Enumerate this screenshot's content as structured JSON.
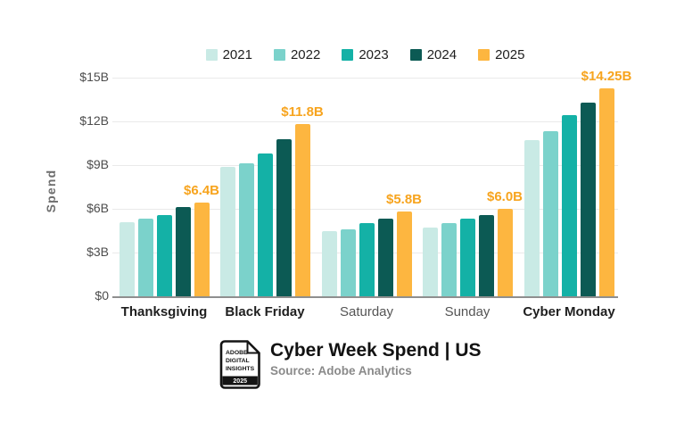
{
  "page": {
    "background": "#ffffff"
  },
  "chart_data": {
    "type": "bar",
    "title": "Cyber Week Spend | US",
    "source": "Source: Adobe Analytics",
    "ylabel": "Spend",
    "ylim": [
      0,
      15
    ],
    "grid": true,
    "legend_position": "top",
    "yticks": [
      {
        "value": 15,
        "label": "$15B"
      },
      {
        "value": 12,
        "label": "$12B"
      },
      {
        "value": 9,
        "label": "$9B"
      },
      {
        "value": 6,
        "label": "$6B"
      },
      {
        "value": 3,
        "label": "$3B"
      },
      {
        "value": 0,
        "label": "$0"
      }
    ],
    "categories": [
      "Thanksgiving",
      "Black Friday",
      "Saturday",
      "Sunday",
      "Cyber Monday"
    ],
    "category_emphasis": [
      true,
      true,
      false,
      false,
      true
    ],
    "series": [
      {
        "name": "2021",
        "color": "#C9EAE5",
        "values": [
          5.1,
          8.9,
          4.5,
          4.7,
          10.7
        ]
      },
      {
        "name": "2022",
        "color": "#7BD2CB",
        "values": [
          5.3,
          9.1,
          4.6,
          5.0,
          11.3
        ]
      },
      {
        "name": "2023",
        "color": "#14B1A6",
        "values": [
          5.6,
          9.8,
          5.0,
          5.3,
          12.4
        ]
      },
      {
        "name": "2024",
        "color": "#0C5A54",
        "values": [
          6.1,
          10.8,
          5.3,
          5.6,
          13.3
        ]
      },
      {
        "name": "2025",
        "color": "#FDB640",
        "values": [
          6.4,
          11.8,
          5.8,
          6.0,
          14.25
        ]
      }
    ],
    "annotations": [
      "$6.4B",
      "$11.8B",
      "$5.8B",
      "$6.0B",
      "$14.25B"
    ],
    "annotation_color": "#F7A41E"
  },
  "footer": {
    "title": "Cyber Week Spend | US",
    "source": "Source: Adobe Analytics",
    "logo": {
      "line1": "ADOBE",
      "line2": "DIGITAL",
      "line3": "INSIGHTS",
      "year": "2025"
    }
  }
}
